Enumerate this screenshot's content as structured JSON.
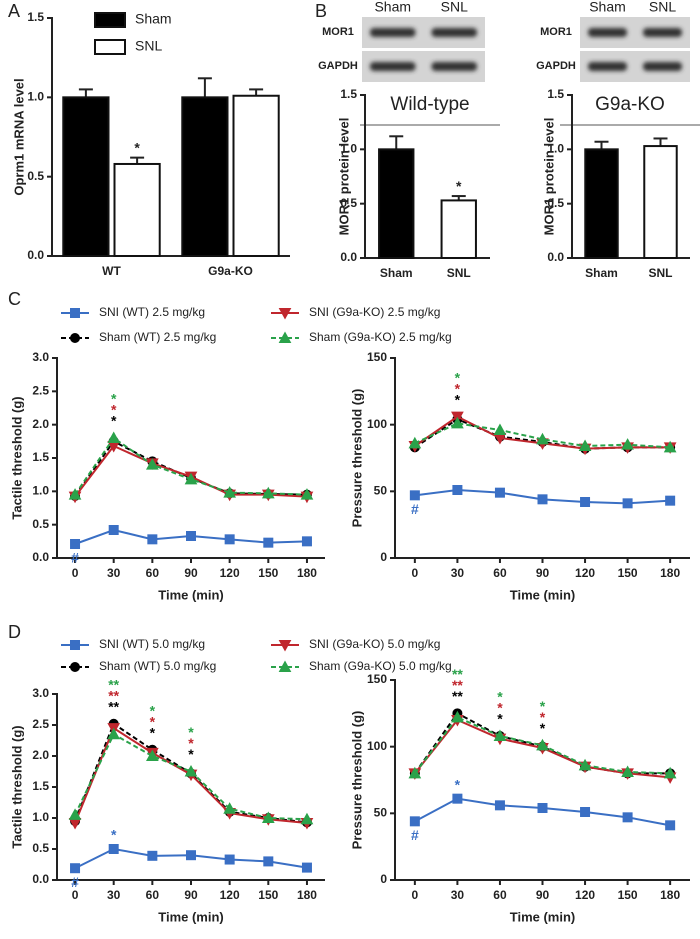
{
  "chart_data": [
    {
      "type": "bar",
      "label": "A",
      "ylabel": "Oprm1 mRNA level",
      "categories": [
        "WT",
        "G9a-KO"
      ],
      "series": [
        {
          "name": "Sham",
          "color": "#000000",
          "values": [
            1.0,
            1.0
          ],
          "errors": [
            0.05,
            0.12
          ],
          "annotations": [
            null,
            null
          ]
        },
        {
          "name": "SNL",
          "color": "#ffffff",
          "values": [
            0.58,
            1.01
          ],
          "errors": [
            0.04,
            0.04
          ],
          "annotations": [
            "*",
            null
          ]
        }
      ],
      "ylim": [
        0,
        1.5
      ],
      "yticks": [
        {
          "value": 0,
          "label": "0.0"
        },
        0.5,
        {
          "value": 1,
          "label": "1.0"
        },
        1.5
      ]
    },
    {
      "type": "bar",
      "label": "B",
      "title": "Wild-type",
      "ylabel": "MOR1 protein level",
      "blot": {
        "lanes": [
          "Sham",
          "SNL"
        ],
        "rows": [
          "MOR1",
          "GAPDH"
        ]
      },
      "categories": [
        "Sham",
        "SNL"
      ],
      "colors": [
        "#000000",
        "#ffffff"
      ],
      "values": [
        1.0,
        0.53
      ],
      "errors": [
        0.12,
        0.04
      ],
      "annotations": [
        null,
        "*"
      ],
      "ylim": [
        0,
        1.5
      ],
      "yticks": [
        {
          "value": 0,
          "label": "0.0"
        },
        0.5,
        {
          "value": 1,
          "label": "1.0"
        },
        1.5
      ]
    },
    {
      "type": "bar",
      "title": "G9a-KO",
      "ylabel": "MOR1 protein level",
      "blot": {
        "lanes": [
          "Sham",
          "SNL"
        ],
        "rows": [
          "MOR1",
          "GAPDH"
        ]
      },
      "categories": [
        "Sham",
        "SNL"
      ],
      "colors": [
        "#000000",
        "#ffffff"
      ],
      "values": [
        1.0,
        1.03
      ],
      "errors": [
        0.07,
        0.07
      ],
      "annotations": [
        null,
        null
      ],
      "ylim": [
        0,
        1.5
      ],
      "yticks": [
        {
          "value": 0,
          "label": "0.0"
        },
        0.5,
        {
          "value": 1,
          "label": "1.0"
        },
        1.5
      ]
    },
    {
      "type": "line",
      "label": "C",
      "xlabel": "Time (min)",
      "x": [
        0,
        30,
        60,
        90,
        120,
        150,
        180
      ],
      "xlim": [
        -14,
        194
      ],
      "xticks": [
        0,
        30,
        60,
        90,
        120,
        150,
        180
      ],
      "series": [
        {
          "name": "SNI (WT) 2.5 mg/kg",
          "color": "#3a6fc4",
          "marker": "square",
          "dash": false
        },
        {
          "name": "Sham (WT) 2.5 mg/kg",
          "color": "#000000",
          "marker": "circle",
          "dash": true
        },
        {
          "name": "SNI (G9a-KO) 2.5 mg/kg",
          "color": "#c0262d",
          "marker": "triangle-down",
          "dash": false
        },
        {
          "name": "Sham (G9a-KO) 2.5 mg/kg",
          "color": "#2aa24a",
          "marker": "triangle-up",
          "dash": true
        }
      ],
      "panels": [
        {
          "ylabel": "Tactile threshold (g)",
          "ylim": [
            0,
            3
          ],
          "yticks": [
            {
              "value": 0,
              "label": "0.0"
            },
            0.5,
            {
              "value": 1,
              "label": "1.0"
            },
            1.5,
            {
              "value": 2,
              "label": "2.0"
            },
            2.5,
            {
              "value": 3,
              "label": "3.0"
            }
          ],
          "series": [
            {
              "values": [
                0.21,
                0.42,
                0.28,
                0.33,
                0.28,
                0.23,
                0.25
              ],
              "annotations": [
                "#",
                null,
                null,
                null,
                null,
                null,
                null
              ]
            },
            {
              "values": [
                0.93,
                1.75,
                1.45,
                1.2,
                0.97,
                0.96,
                0.95
              ],
              "annotations": [
                null,
                "*",
                null,
                null,
                null,
                null,
                null
              ]
            },
            {
              "values": [
                0.92,
                1.68,
                1.42,
                1.22,
                0.95,
                0.95,
                0.92
              ],
              "annotations": [
                null,
                "*",
                null,
                null,
                null,
                null,
                null
              ]
            },
            {
              "values": [
                0.95,
                1.8,
                1.4,
                1.18,
                0.98,
                0.97,
                0.95
              ],
              "annotations": [
                null,
                "*",
                null,
                null,
                null,
                null,
                null
              ]
            }
          ]
        },
        {
          "ylabel": "Pressure threshold (g)",
          "ylim": [
            0,
            150
          ],
          "yticks": [
            0,
            50,
            100,
            150
          ],
          "series": [
            {
              "values": [
                47,
                51,
                49,
                44,
                42,
                41,
                43
              ],
              "annotations": [
                "#",
                null,
                null,
                null,
                null,
                null,
                null
              ]
            },
            {
              "values": [
                83,
                104,
                91,
                87,
                82,
                83,
                83
              ],
              "annotations": [
                null,
                "*",
                null,
                null,
                null,
                null,
                null
              ]
            },
            {
              "values": [
                84,
                106,
                90,
                86,
                82,
                83,
                83
              ],
              "annotations": [
                null,
                "*",
                null,
                null,
                null,
                null,
                null
              ]
            },
            {
              "values": [
                86,
                101,
                96,
                89,
                84,
                85,
                83
              ],
              "annotations": [
                null,
                "*",
                null,
                null,
                null,
                null,
                null
              ]
            }
          ]
        }
      ]
    },
    {
      "type": "line",
      "label": "D",
      "xlabel": "Time (min)",
      "x": [
        0,
        30,
        60,
        90,
        120,
        150,
        180
      ],
      "xlim": [
        -14,
        194
      ],
      "xticks": [
        0,
        30,
        60,
        90,
        120,
        150,
        180
      ],
      "series": [
        {
          "name": "SNI (WT) 5.0 mg/kg",
          "color": "#3a6fc4",
          "marker": "square",
          "dash": false
        },
        {
          "name": "Sham (WT) 5.0 mg/kg",
          "color": "#000000",
          "marker": "circle",
          "dash": true
        },
        {
          "name": "SNI (G9a-KO) 5.0 mg/kg",
          "color": "#c0262d",
          "marker": "triangle-down",
          "dash": false
        },
        {
          "name": "Sham (G9a-KO) 5.0 mg/kg",
          "color": "#2aa24a",
          "marker": "triangle-up",
          "dash": true
        }
      ],
      "panels": [
        {
          "ylabel": "Tactile threshold (g)",
          "ylim": [
            0,
            3
          ],
          "yticks": [
            {
              "value": 0,
              "label": "0.0"
            },
            0.5,
            {
              "value": 1,
              "label": "1.0"
            },
            1.5,
            {
              "value": 2,
              "label": "2.0"
            },
            2.5,
            {
              "value": 3,
              "label": "3.0"
            }
          ],
          "series": [
            {
              "values": [
                0.19,
                0.5,
                0.39,
                0.4,
                0.33,
                0.3,
                0.2
              ],
              "annotations": [
                "#",
                "*",
                null,
                null,
                null,
                null,
                null
              ]
            },
            {
              "values": [
                0.95,
                2.52,
                2.1,
                1.72,
                1.1,
                1.0,
                0.93
              ],
              "annotations": [
                null,
                "**",
                "*",
                "*",
                null,
                null,
                null
              ]
            },
            {
              "values": [
                0.92,
                2.45,
                2.05,
                1.7,
                1.08,
                0.98,
                0.92
              ],
              "annotations": [
                null,
                "**",
                "*",
                "*",
                null,
                null,
                null
              ]
            },
            {
              "values": [
                1.05,
                2.35,
                2.0,
                1.75,
                1.15,
                1.0,
                0.98
              ],
              "annotations": [
                null,
                "**",
                "*",
                "*",
                null,
                null,
                null
              ]
            }
          ]
        },
        {
          "ylabel": "Pressure threshold (g)",
          "ylim": [
            0,
            150
          ],
          "yticks": [
            0,
            50,
            100,
            150
          ],
          "series": [
            {
              "values": [
                44,
                61,
                56,
                54,
                51,
                47,
                41
              ],
              "annotations": [
                "#",
                "*",
                null,
                null,
                null,
                null,
                null
              ]
            },
            {
              "values": [
                80,
                125,
                108,
                100,
                85,
                80,
                80
              ],
              "annotations": [
                null,
                "**",
                "*",
                "*",
                null,
                null,
                null
              ]
            },
            {
              "values": [
                80,
                120,
                106,
                99,
                85,
                80,
                77
              ],
              "annotations": [
                null,
                "**",
                "*",
                "*",
                null,
                null,
                null
              ]
            },
            {
              "values": [
                80,
                122,
                108,
                101,
                86,
                81,
                80
              ],
              "annotations": [
                null,
                "**",
                "*",
                "*",
                null,
                null,
                null
              ]
            }
          ]
        }
      ]
    }
  ]
}
